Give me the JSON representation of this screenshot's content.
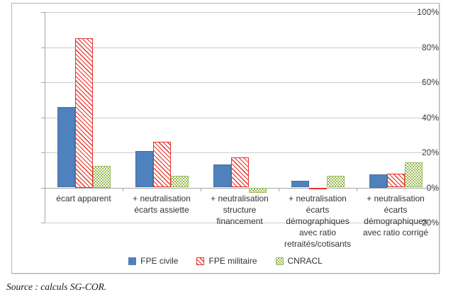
{
  "source_note": "Source : calculs SG-COR.",
  "chart_data": {
    "type": "bar",
    "title": "",
    "xlabel": "",
    "ylabel": "",
    "ylim": [
      -20,
      100
    ],
    "ytick_step": 20,
    "ytick_labels": [
      "100%",
      "80%",
      "60%",
      "40%",
      "20%",
      "0%",
      "-20%"
    ],
    "grid": true,
    "legend_position": "bottom",
    "categories": [
      "écart apparent",
      "+ neutralisation écarts assiette",
      "+ neutralisation structure financement",
      "+ neutralisation écarts démographiques avec ratio retraités/cotisants",
      "+ neutralisation écarts démographiques avec ratio corrigé"
    ],
    "category_label_lines": [
      [
        "écart apparent"
      ],
      [
        "+ neutralisation",
        "écarts assiette"
      ],
      [
        "+ neutralisation",
        "structure",
        "financement"
      ],
      [
        "+ neutralisation",
        "écarts",
        "démographiques",
        "avec ratio",
        "retraités/cotisants"
      ],
      [
        "+ neutralisation",
        "écarts",
        "démographiques",
        "avec ratio corrigé"
      ]
    ],
    "series": [
      {
        "name": "FPE civile",
        "color": "#4f81bd",
        "pattern": "solid",
        "values": [
          46,
          21,
          13,
          4,
          7.5
        ]
      },
      {
        "name": "FPE militaire",
        "color": "#e5342b",
        "pattern": "diagonal-hatch",
        "values": [
          85,
          26,
          17,
          -1,
          8
        ]
      },
      {
        "name": "CNRACL",
        "color": "#9bbb59",
        "pattern": "checker",
        "values": [
          12.5,
          6.5,
          -3,
          6.5,
          14.5
        ]
      }
    ]
  }
}
